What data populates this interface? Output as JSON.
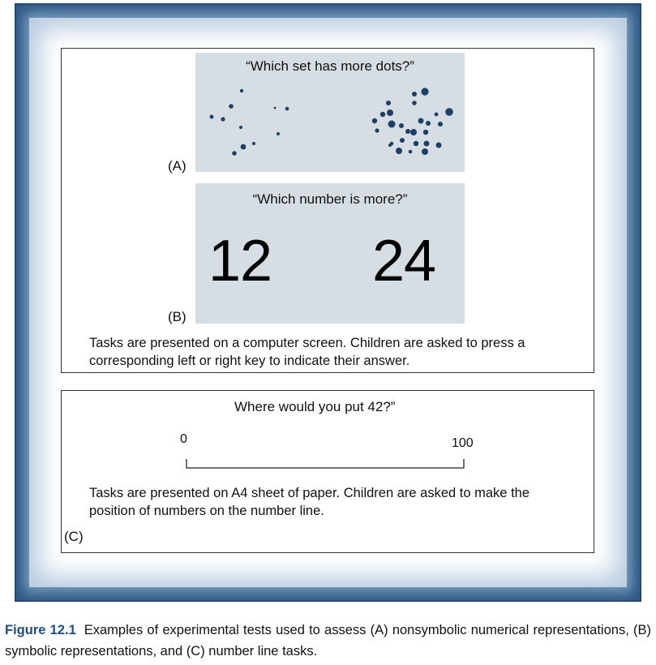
{
  "panel_a": {
    "label": "(A)",
    "question": "“Which set has more dots?”"
  },
  "panel_b": {
    "label": "(B)",
    "question": "“Which number is more?”",
    "left_number": "12",
    "right_number": "24"
  },
  "top_description_line1": "Tasks are presented on a computer screen. Children are asked to press a",
  "top_description_line2": "corresponding left or right key to indicate their answer.",
  "panel_c": {
    "label": "(C)",
    "question": "Where would you put 42?”",
    "line_min": "0",
    "line_max": "100",
    "description_line1": "Tasks are presented on A4 sheet of paper. Children are asked to make the",
    "description_line2": "position of numbers on the number line."
  },
  "caption": {
    "label": "Figure 12.1",
    "text": "Examples of experimental tests used to assess (A) nonsymbolic numerical representations, (B) symbolic representations, and (C) number line tasks."
  },
  "colors": {
    "frame": "#2f5a85",
    "screen_bg": "#d6dde3",
    "dot": "#1b3f66",
    "caption_label": "#1f4e86"
  }
}
